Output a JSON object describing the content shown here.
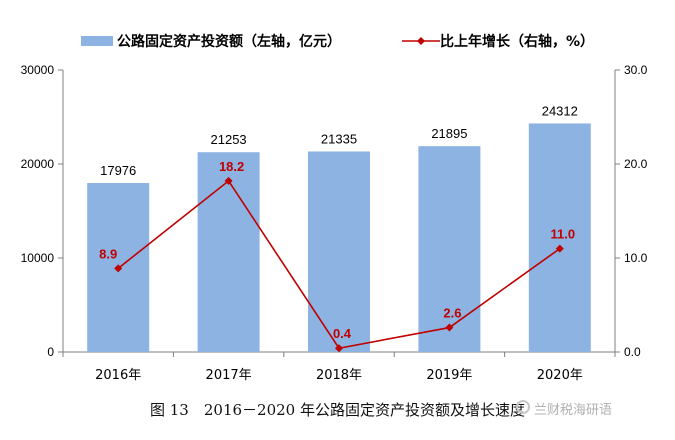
{
  "caption": "图 13　2016－2020 年公路固定资产投资额及增长速度",
  "watermark": "兰财税海研语",
  "colors": {
    "bar": "#8db3e2",
    "line": "#c00000",
    "axis": "#808080",
    "grid": "#d9d9d9"
  },
  "chart_data": {
    "type": "bar+line",
    "categories": [
      "2016年",
      "2017年",
      "2018年",
      "2019年",
      "2020年"
    ],
    "series": [
      {
        "name": "公路固定资产投资额（左轴，亿元）",
        "type": "bar",
        "axis": "left",
        "values": [
          17976,
          21253,
          21335,
          21895,
          24312
        ],
        "labels": [
          "17976",
          "21253",
          "21335",
          "21895",
          "24312"
        ]
      },
      {
        "name": "比上年增长（右轴，%）",
        "type": "line",
        "axis": "right",
        "values": [
          8.9,
          18.2,
          0.4,
          2.6,
          11.0
        ],
        "labels": [
          "8.9",
          "18.2",
          "0.4",
          "2.6",
          "11.0"
        ]
      }
    ],
    "y_left": {
      "min": 0,
      "max": 30000,
      "ticks": [
        "0",
        "10000",
        "20000",
        "30000"
      ]
    },
    "y_right": {
      "min": 0,
      "max": 30,
      "ticks": [
        "0.0",
        "10.0",
        "20.0",
        "30.0"
      ]
    },
    "legend_position": "top",
    "grid": false
  }
}
